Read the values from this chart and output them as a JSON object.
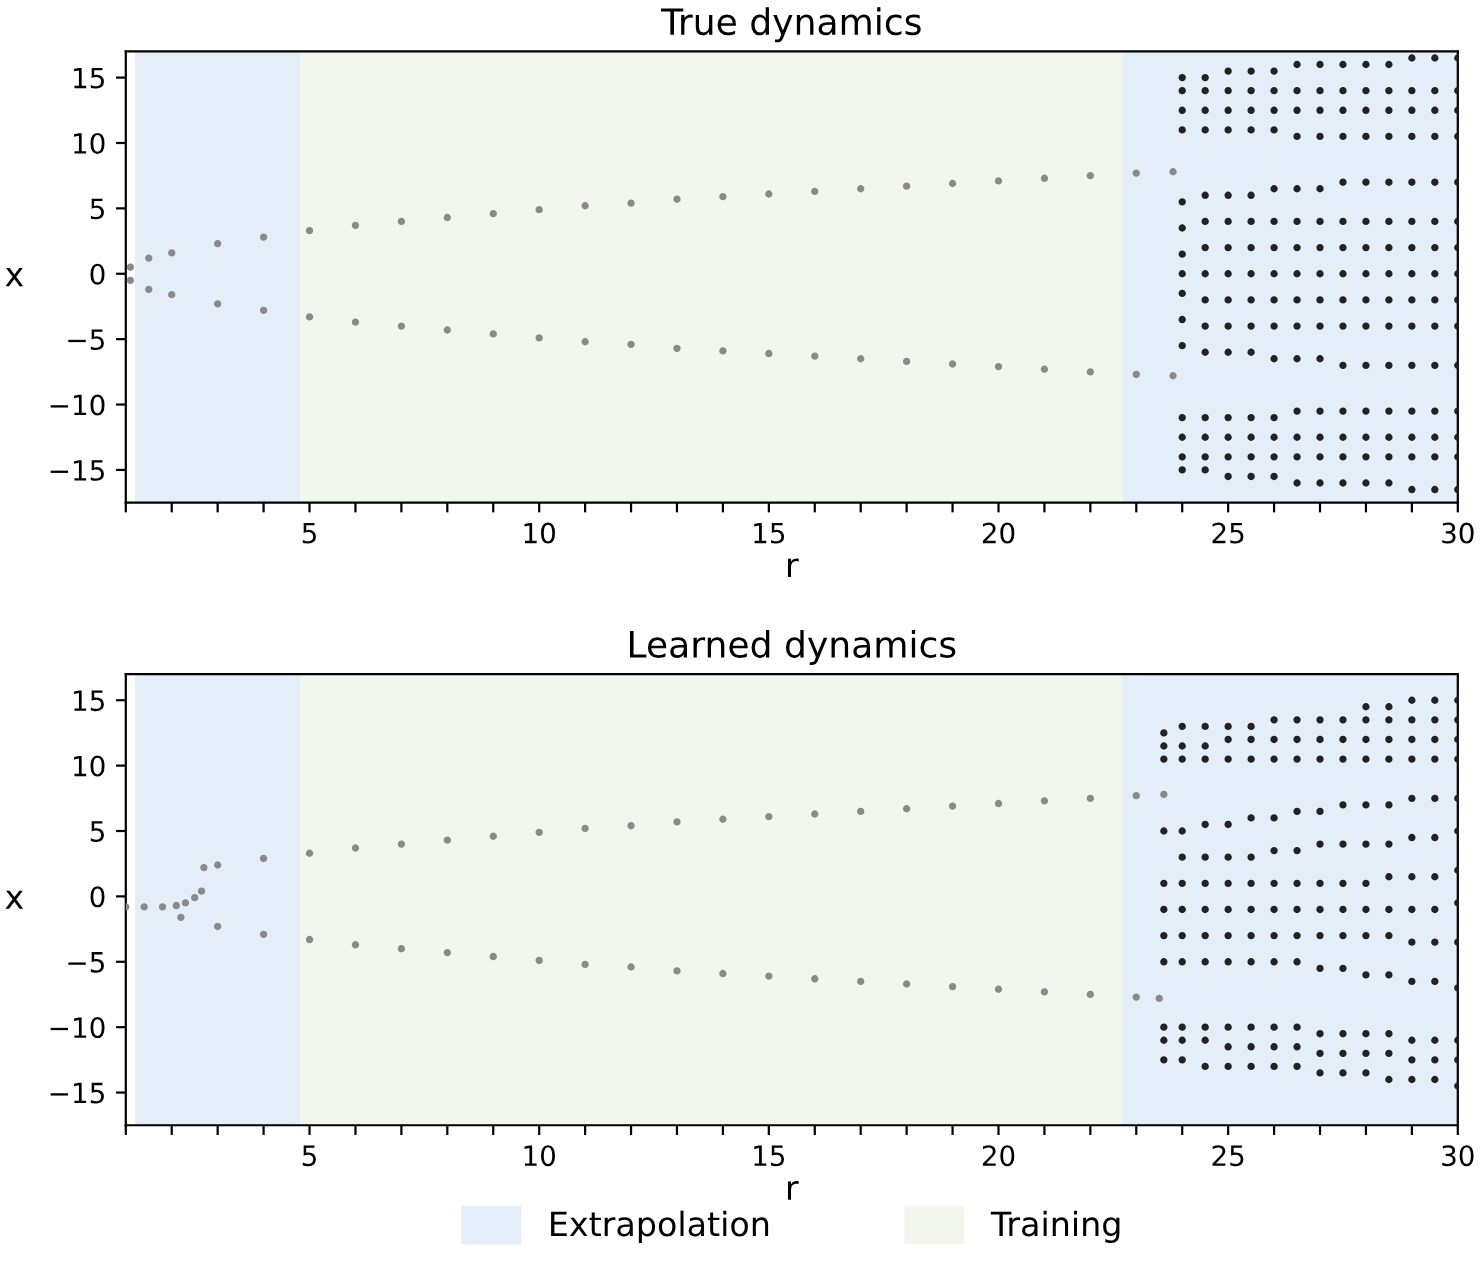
{
  "chart_data": [
    {
      "type": "scatter",
      "title": "True dynamics",
      "xlabel": "r",
      "ylabel": "x",
      "xlim": [
        1,
        30
      ],
      "ylim": [
        -17.5,
        17
      ],
      "xticks": [
        {
          "value": 1,
          "label": null
        },
        {
          "value": 2,
          "label": null
        },
        {
          "value": 3,
          "label": null
        },
        {
          "value": 4,
          "label": null
        },
        5,
        {
          "value": 6,
          "label": null
        },
        {
          "value": 7,
          "label": null
        },
        {
          "value": 8,
          "label": null
        },
        {
          "value": 9,
          "label": null
        },
        10,
        {
          "value": 11,
          "label": null
        },
        {
          "value": 12,
          "label": null
        },
        {
          "value": 13,
          "label": null
        },
        {
          "value": 14,
          "label": null
        },
        15,
        {
          "value": 16,
          "label": null
        },
        {
          "value": 17,
          "label": null
        },
        {
          "value": 18,
          "label": null
        },
        {
          "value": 19,
          "label": null
        },
        20,
        {
          "value": 21,
          "label": null
        },
        {
          "value": 22,
          "label": null
        },
        {
          "value": 23,
          "label": null
        },
        {
          "value": 24,
          "label": null
        },
        25,
        {
          "value": 26,
          "label": null
        },
        {
          "value": 27,
          "label": null
        },
        {
          "value": 28,
          "label": null
        },
        {
          "value": 29,
          "label": null
        },
        30
      ],
      "yticks": [
        -15,
        -10,
        -5,
        0,
        5,
        10,
        15
      ],
      "grid": false,
      "marker": "circle",
      "bands": [
        {
          "axis": "x",
          "from": 1.2,
          "to": 4.8,
          "color": "#e4eef8"
        },
        {
          "axis": "x",
          "from": 4.8,
          "to": 22.7,
          "color": "#f2f7ee"
        },
        {
          "axis": "x",
          "from": 22.7,
          "to": 30,
          "color": "#e4eef8"
        }
      ],
      "series": [
        {
          "color": "#8a8a8a",
          "x": [
            1.1,
            1.5,
            2,
            3,
            4,
            5,
            6,
            7,
            8,
            9,
            10,
            11,
            12,
            13,
            14,
            15,
            16,
            17,
            18,
            19,
            20,
            21,
            22,
            23,
            23.8
          ],
          "values": [
            0.5,
            1.2,
            1.6,
            2.3,
            2.8,
            3.3,
            3.7,
            4.0,
            4.3,
            4.6,
            4.9,
            5.2,
            5.4,
            5.7,
            5.9,
            6.1,
            6.3,
            6.5,
            6.7,
            6.9,
            7.1,
            7.3,
            7.5,
            7.7,
            7.8
          ]
        },
        {
          "color": "#8a8a8a",
          "x": [
            1.1,
            1.5,
            2,
            3,
            4,
            5,
            6,
            7,
            8,
            9,
            10,
            11,
            12,
            13,
            14,
            15,
            16,
            17,
            18,
            19,
            20,
            21,
            22,
            23,
            23.8
          ],
          "values": [
            -0.5,
            -1.2,
            -1.6,
            -2.3,
            -2.8,
            -3.3,
            -3.7,
            -4.0,
            -4.3,
            -4.6,
            -4.9,
            -5.2,
            -5.4,
            -5.7,
            -5.9,
            -6.1,
            -6.3,
            -6.5,
            -6.7,
            -6.9,
            -7.1,
            -7.3,
            -7.5,
            -7.7,
            -7.8
          ]
        },
        {
          "color": "#222222",
          "x": [
            24,
            24,
            24,
            24,
            24.5,
            24.5,
            24.5,
            24.5,
            25,
            25,
            25,
            25,
            25.5,
            25.5,
            25.5,
            25.5,
            26,
            26,
            26,
            26,
            26.5,
            26.5,
            26.5,
            26.5,
            27,
            27,
            27,
            27,
            27.5,
            27.5,
            27.5,
            27.5,
            28,
            28,
            28,
            28,
            28.5,
            28.5,
            28.5,
            28.5,
            29,
            29,
            29,
            29,
            29.5,
            29.5,
            29.5,
            29.5,
            30,
            30,
            30,
            30
          ],
          "values": [
            11,
            12.5,
            14,
            15,
            11,
            12.5,
            14,
            15,
            11,
            12.5,
            14,
            15.5,
            11,
            12.5,
            14,
            15.5,
            11,
            12.5,
            14,
            15.5,
            10.5,
            12.5,
            14,
            16,
            10.5,
            12.5,
            14,
            16,
            10.5,
            12.5,
            14,
            16,
            10.5,
            12.5,
            14,
            16,
            10.5,
            12.5,
            14,
            16,
            10.5,
            12.5,
            14,
            16.5,
            10.5,
            12.5,
            14,
            16.5,
            10.5,
            12.5,
            14,
            16.5
          ]
        },
        {
          "color": "#222222",
          "x": [
            24,
            24,
            24,
            24,
            24,
            24,
            24,
            24.5,
            24.5,
            24.5,
            24.5,
            24.5,
            24.5,
            24.5,
            25,
            25,
            25,
            25,
            25,
            25,
            25,
            25.5,
            25.5,
            25.5,
            25.5,
            25.5,
            25.5,
            25.5,
            26,
            26,
            26,
            26,
            26,
            26,
            26,
            26.5,
            26.5,
            26.5,
            26.5,
            26.5,
            26.5,
            26.5,
            27,
            27,
            27,
            27,
            27,
            27,
            27,
            27.5,
            27.5,
            27.5,
            27.5,
            27.5,
            27.5,
            27.5,
            28,
            28,
            28,
            28,
            28,
            28,
            28,
            28.5,
            28.5,
            28.5,
            28.5,
            28.5,
            28.5,
            28.5,
            29,
            29,
            29,
            29,
            29,
            29,
            29,
            29.5,
            29.5,
            29.5,
            29.5,
            29.5,
            29.5,
            29.5,
            30,
            30,
            30,
            30,
            30,
            30,
            30
          ],
          "values": [
            -5.5,
            -3.5,
            -1.5,
            0,
            1.5,
            3.5,
            5.5,
            -6,
            -4,
            -2,
            0,
            2,
            4,
            6,
            -6,
            -4,
            -2,
            0,
            2,
            4,
            6,
            -6,
            -4,
            -2,
            0,
            2,
            4,
            6,
            -6.5,
            -4,
            -2,
            0,
            2,
            4,
            6.5,
            -6.5,
            -4,
            -2,
            0,
            2,
            4,
            6.5,
            -6.5,
            -4,
            -2,
            0,
            2,
            4,
            6.5,
            -7,
            -4,
            -2,
            0,
            2,
            4,
            7,
            -7,
            -4,
            -2,
            0,
            2,
            4,
            7,
            -7,
            -4,
            -2,
            0,
            2,
            4,
            7,
            -7,
            -4,
            -2,
            0,
            2,
            4,
            7,
            -7,
            -4,
            -2,
            0,
            2,
            4,
            7,
            -7,
            -4,
            -2,
            0,
            2,
            4,
            7
          ]
        },
        {
          "color": "#222222",
          "x": [
            24,
            24,
            24,
            24,
            24.5,
            24.5,
            24.5,
            24.5,
            25,
            25,
            25,
            25,
            25.5,
            25.5,
            25.5,
            25.5,
            26,
            26,
            26,
            26,
            26.5,
            26.5,
            26.5,
            26.5,
            27,
            27,
            27,
            27,
            27.5,
            27.5,
            27.5,
            27.5,
            28,
            28,
            28,
            28,
            28.5,
            28.5,
            28.5,
            28.5,
            29,
            29,
            29,
            29,
            29.5,
            29.5,
            29.5,
            29.5,
            30,
            30,
            30,
            30
          ],
          "values": [
            -11,
            -12.5,
            -14,
            -15,
            -11,
            -12.5,
            -14,
            -15,
            -11,
            -12.5,
            -14,
            -15.5,
            -11,
            -12.5,
            -14,
            -15.5,
            -11,
            -12.5,
            -14,
            -15.5,
            -10.5,
            -12.5,
            -14,
            -16,
            -10.5,
            -12.5,
            -14,
            -16,
            -10.5,
            -12.5,
            -14,
            -16,
            -10.5,
            -12.5,
            -14,
            -16,
            -10.5,
            -12.5,
            -14,
            -16,
            -10.5,
            -12.5,
            -14,
            -16.5,
            -10.5,
            -12.5,
            -14,
            -16.5,
            -10.5,
            -12.5,
            -14,
            -16.5
          ]
        }
      ]
    },
    {
      "type": "scatter",
      "title": "Learned dynamics",
      "xlabel": "r",
      "ylabel": "x",
      "xlim": [
        1,
        30
      ],
      "ylim": [
        -17.5,
        17
      ],
      "xticks": [
        {
          "value": 1,
          "label": null
        },
        {
          "value": 2,
          "label": null
        },
        {
          "value": 3,
          "label": null
        },
        {
          "value": 4,
          "label": null
        },
        5,
        {
          "value": 6,
          "label": null
        },
        {
          "value": 7,
          "label": null
        },
        {
          "value": 8,
          "label": null
        },
        {
          "value": 9,
          "label": null
        },
        10,
        {
          "value": 11,
          "label": null
        },
        {
          "value": 12,
          "label": null
        },
        {
          "value": 13,
          "label": null
        },
        {
          "value": 14,
          "label": null
        },
        15,
        {
          "value": 16,
          "label": null
        },
        {
          "value": 17,
          "label": null
        },
        {
          "value": 18,
          "label": null
        },
        {
          "value": 19,
          "label": null
        },
        20,
        {
          "value": 21,
          "label": null
        },
        {
          "value": 22,
          "label": null
        },
        {
          "value": 23,
          "label": null
        },
        {
          "value": 24,
          "label": null
        },
        25,
        {
          "value": 26,
          "label": null
        },
        {
          "value": 27,
          "label": null
        },
        {
          "value": 28,
          "label": null
        },
        {
          "value": 29,
          "label": null
        },
        30
      ],
      "yticks": [
        -15,
        -10,
        -5,
        0,
        5,
        10,
        15
      ],
      "grid": false,
      "marker": "circle",
      "legend": "bottom",
      "bands": [
        {
          "axis": "x",
          "from": 1.2,
          "to": 4.8,
          "color": "#e4eef8",
          "label": "Extrapolation"
        },
        {
          "axis": "x",
          "from": 4.8,
          "to": 22.7,
          "color": "#f2f7ee",
          "label": "Training"
        },
        {
          "axis": "x",
          "from": 22.7,
          "to": 30,
          "color": "#e4eef8"
        }
      ],
      "series": [
        {
          "color": "#8a8a8a",
          "x": [
            1,
            1.4,
            1.8,
            2.1,
            2.3,
            2.5,
            2.65
          ],
          "values": [
            -0.8,
            -0.8,
            -0.8,
            -0.7,
            -0.5,
            -0.1,
            0.4
          ]
        },
        {
          "color": "#8a8a8a",
          "x": [
            2.7,
            3,
            4,
            5,
            6,
            7,
            8,
            9,
            10,
            11,
            12,
            13,
            14,
            15,
            16,
            17,
            18,
            19,
            20,
            21,
            22,
            23,
            23.6
          ],
          "values": [
            2.2,
            2.4,
            2.9,
            3.3,
            3.7,
            4.0,
            4.3,
            4.6,
            4.9,
            5.2,
            5.4,
            5.7,
            5.9,
            6.1,
            6.3,
            6.5,
            6.7,
            6.9,
            7.1,
            7.3,
            7.5,
            7.7,
            7.8
          ]
        },
        {
          "color": "#8a8a8a",
          "x": [
            2.2,
            3,
            4,
            5,
            6,
            7,
            8,
            9,
            10,
            11,
            12,
            13,
            14,
            15,
            16,
            17,
            18,
            19,
            20,
            21,
            22,
            23,
            23.5
          ],
          "values": [
            -1.6,
            -2.3,
            -2.9,
            -3.3,
            -3.7,
            -4.0,
            -4.3,
            -4.6,
            -4.9,
            -5.2,
            -5.4,
            -5.7,
            -5.9,
            -6.1,
            -6.3,
            -6.5,
            -6.7,
            -6.9,
            -7.1,
            -7.3,
            -7.5,
            -7.7,
            -7.8
          ]
        },
        {
          "color": "#222222",
          "x": [
            23.6,
            23.6,
            23.6,
            24,
            24,
            24,
            24.5,
            24.5,
            24.5,
            25,
            25,
            25,
            25.5,
            25.5,
            25.5,
            26,
            26,
            26,
            26.5,
            26.5,
            26.5,
            27,
            27,
            27,
            27.5,
            27.5,
            27.5,
            28,
            28,
            28,
            28,
            28.5,
            28.5,
            28.5,
            28.5,
            29,
            29,
            29,
            29,
            29.5,
            29.5,
            29.5,
            29.5,
            30,
            30,
            30,
            30
          ],
          "values": [
            10.5,
            11.5,
            12.5,
            10.5,
            11.5,
            13,
            10.5,
            11.5,
            13,
            10.5,
            12,
            13,
            10.5,
            12,
            13,
            10.5,
            12,
            13.5,
            10.5,
            12,
            13.5,
            10.5,
            12,
            13.5,
            10.5,
            12,
            13.5,
            10.5,
            12,
            13.5,
            14.5,
            10.5,
            12,
            13.5,
            14.5,
            10.5,
            12,
            13.5,
            15,
            10.5,
            12,
            13.5,
            15,
            10.5,
            12,
            13.5,
            15
          ]
        },
        {
          "color": "#222222",
          "x": [
            23.6,
            23.6,
            23.6,
            23.6,
            23.6,
            24,
            24,
            24,
            24,
            24,
            24,
            24.5,
            24.5,
            24.5,
            24.5,
            24.5,
            24.5,
            25,
            25,
            25,
            25,
            25,
            25,
            25.5,
            25.5,
            25.5,
            25.5,
            25.5,
            25.5,
            26,
            26,
            26,
            26,
            26,
            26,
            26.5,
            26.5,
            26.5,
            26.5,
            26.5,
            26.5,
            27,
            27,
            27,
            27,
            27,
            27,
            27.5,
            27.5,
            27.5,
            27.5,
            27.5,
            27.5,
            28,
            28,
            28,
            28,
            28,
            28,
            28.5,
            28.5,
            28.5,
            28.5,
            28.5,
            28.5,
            29,
            29,
            29,
            29,
            29,
            29,
            29.5,
            29.5,
            29.5,
            29.5,
            29.5,
            29.5,
            30,
            30,
            30,
            30,
            30,
            30
          ],
          "values": [
            -5,
            -3,
            -1,
            1,
            5,
            -5,
            -3,
            -1,
            1,
            3,
            5,
            -5,
            -3,
            -1,
            1,
            3,
            5.5,
            -5,
            -3,
            -1,
            1,
            3,
            5.5,
            -5,
            -3,
            -1,
            1,
            3,
            6,
            -5,
            -3,
            -1,
            1,
            3.5,
            6,
            -5,
            -3,
            -1,
            1,
            3.5,
            6.5,
            -5.5,
            -3,
            -1,
            1,
            4,
            6.5,
            -5.5,
            -3,
            -1,
            1,
            4,
            7,
            -6,
            -3,
            -1,
            1,
            4,
            7,
            -6,
            -3,
            -1,
            1.5,
            4,
            7,
            -6.5,
            -3.5,
            -1,
            1.5,
            4.5,
            7.5,
            -6.5,
            -3.5,
            -1,
            1.5,
            4.5,
            7.5,
            -7,
            -3.5,
            -0.5,
            2,
            5,
            7.5
          ]
        },
        {
          "color": "#222222",
          "x": [
            23.6,
            23.6,
            23.6,
            24,
            24,
            24,
            24.5,
            24.5,
            24.5,
            25,
            25,
            25,
            25.5,
            25.5,
            25.5,
            26,
            26,
            26,
            26.5,
            26.5,
            26.5,
            27,
            27,
            27,
            27.5,
            27.5,
            27.5,
            28,
            28,
            28,
            28.5,
            28.5,
            28.5,
            29,
            29,
            29,
            29.5,
            29.5,
            29.5,
            30,
            30,
            30
          ],
          "values": [
            -10,
            -11,
            -12.5,
            -10,
            -11,
            -12.5,
            -10,
            -11,
            -13,
            -10,
            -11.5,
            -13,
            -10,
            -11.5,
            -13,
            -10,
            -11.5,
            -13,
            -10,
            -11.5,
            -13,
            -10.5,
            -12,
            -13.5,
            -10.5,
            -12,
            -13.5,
            -10.5,
            -12,
            -13.5,
            -10.5,
            -12,
            -14,
            -11,
            -12.5,
            -14,
            -11,
            -12.5,
            -14,
            -11,
            -12.5,
            -14.5
          ]
        }
      ]
    }
  ]
}
